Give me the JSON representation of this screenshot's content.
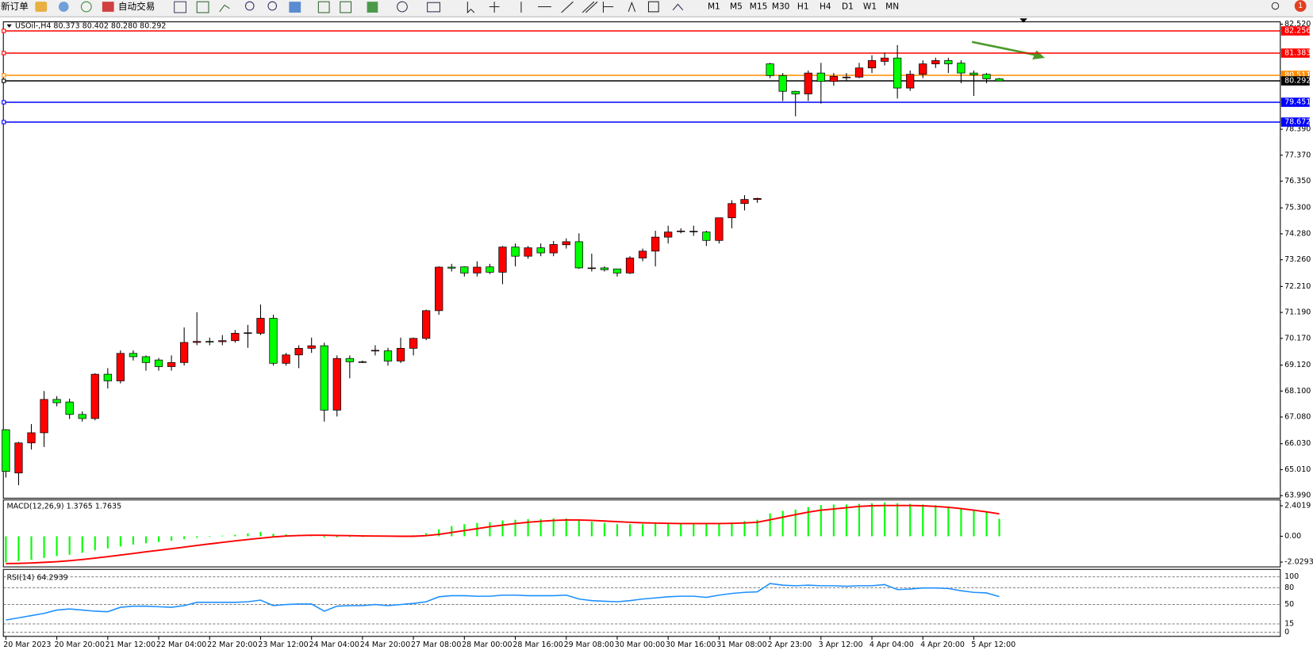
{
  "toolbar": {
    "new_order": "新订单",
    "auto_trading": "自动交易",
    "timeframes": [
      "M1",
      "M5",
      "M15",
      "M30",
      "H1",
      "H4",
      "D1",
      "W1",
      "MN"
    ],
    "badge": "1"
  },
  "chart_data": [
    {
      "type": "candlestick",
      "title": "USOil-,H4  80.373 80.402 80.280 80.292",
      "x": [
        "20 Mar 2023",
        null,
        null,
        null,
        "20 Mar 20:00",
        null,
        null,
        null,
        "21 Mar 12:00",
        null,
        null,
        null,
        "22 Mar 04:00",
        null,
        null,
        null,
        "22 Mar 20:00",
        null,
        null,
        null,
        "23 Mar 12:00",
        null,
        null,
        null,
        "24 Mar 04:00",
        null,
        null,
        null,
        "24 Mar 20:00",
        null,
        null,
        null,
        "27 Mar 08:00",
        null,
        null,
        null,
        "28 Mar 00:00",
        null,
        null,
        null,
        "28 Mar 16:00",
        null,
        null,
        null,
        "29 Mar 08:00",
        null,
        null,
        null,
        "30 Mar 00:00",
        null,
        null,
        null,
        "30 Mar 16:00",
        null,
        null,
        null,
        "31 Mar 08:00",
        null,
        null,
        null,
        "2 Apr 23:00",
        null,
        null,
        null,
        "3 Apr 12:00",
        null,
        null,
        null,
        "4 Apr 04:00",
        null,
        null,
        null,
        "4 Apr 20:00",
        null,
        null,
        null,
        "5 Apr 12:00",
        null,
        null
      ],
      "open": [
        66.58,
        64.88,
        66.06,
        66.46,
        67.77,
        67.67,
        67.18,
        67.02,
        68.76,
        68.5,
        69.58,
        69.45,
        69.32,
        69.06,
        69.22,
        70.01,
        70.05,
        70.04,
        70.08,
        70.37,
        70.37,
        70.96,
        69.19,
        69.52,
        69.78,
        69.88,
        67.35,
        69.38,
        69.25,
        69.7,
        69.68,
        69.28,
        69.78,
        70.17,
        71.26,
        72.97,
        72.98,
        72.74,
        72.98,
        72.77,
        73.76,
        73.4,
        73.73,
        73.53,
        73.85,
        73.97,
        72.94,
        72.94,
        72.9,
        72.74,
        73.33,
        73.6,
        74.15,
        74.37,
        74.37,
        74.35,
        74.02,
        74.91,
        75.47,
        75.63,
        80.96,
        80.5,
        79.88,
        79.78,
        80.6,
        80.27,
        80.44,
        80.44,
        80.8,
        81.06,
        81.19,
        80.01,
        80.55,
        80.96,
        81.09,
        80.99,
        80.6,
        80.55,
        80.373
      ],
      "high": [
        66.6,
        66.1,
        66.8,
        68.1,
        67.9,
        67.8,
        67.3,
        68.8,
        69.0,
        69.7,
        69.7,
        69.5,
        69.4,
        69.5,
        70.6,
        71.2,
        70.2,
        70.3,
        70.5,
        70.7,
        71.5,
        71.1,
        69.6,
        69.9,
        70.2,
        70.0,
        69.5,
        69.5,
        69.3,
        69.9,
        69.8,
        70.2,
        70.2,
        71.3,
        73.0,
        73.1,
        73.0,
        73.2,
        73.1,
        73.8,
        73.9,
        73.8,
        73.9,
        74.0,
        74.1,
        74.3,
        73.5,
        73.0,
        72.9,
        73.4,
        73.7,
        74.4,
        74.6,
        74.5,
        74.6,
        74.4,
        74.9,
        75.6,
        75.8,
        75.7,
        81.0,
        80.6,
        79.9,
        80.7,
        81.0,
        80.6,
        80.6,
        81.0,
        81.3,
        81.4,
        81.7,
        80.7,
        81.1,
        81.2,
        81.2,
        81.1,
        80.7,
        80.6,
        80.402
      ],
      "low": [
        64.7,
        64.4,
        65.8,
        65.9,
        67.5,
        67.0,
        66.9,
        66.95,
        68.2,
        68.4,
        69.3,
        68.9,
        68.9,
        68.9,
        69.1,
        69.9,
        69.9,
        69.9,
        70.0,
        69.8,
        70.3,
        69.1,
        69.1,
        69.0,
        69.6,
        66.9,
        67.1,
        68.6,
        69.2,
        69.5,
        69.1,
        69.2,
        69.5,
        70.1,
        71.1,
        72.8,
        72.6,
        72.6,
        72.7,
        72.3,
        73.0,
        73.3,
        73.4,
        73.4,
        73.7,
        72.9,
        72.8,
        72.8,
        72.6,
        72.7,
        73.2,
        73.0,
        73.9,
        74.3,
        74.2,
        73.8,
        73.9,
        74.5,
        75.2,
        75.5,
        80.4,
        79.5,
        78.9,
        79.5,
        79.4,
        80.1,
        80.3,
        80.4,
        80.6,
        80.9,
        79.6,
        79.9,
        80.4,
        80.8,
        80.6,
        80.2,
        79.7,
        80.2,
        80.28
      ],
      "close": [
        64.94,
        66.06,
        66.46,
        67.77,
        67.64,
        67.18,
        67.02,
        68.76,
        68.5,
        69.58,
        69.45,
        69.22,
        69.06,
        69.22,
        70.01,
        70.05,
        70.04,
        70.08,
        70.37,
        70.39,
        70.96,
        69.19,
        69.52,
        69.78,
        69.88,
        67.35,
        69.38,
        69.25,
        69.25,
        69.7,
        69.28,
        69.78,
        70.17,
        71.26,
        72.97,
        72.93,
        72.74,
        72.97,
        72.77,
        73.76,
        73.4,
        73.73,
        73.53,
        73.86,
        73.97,
        72.94,
        72.94,
        72.87,
        72.74,
        73.33,
        73.6,
        74.15,
        74.35,
        74.39,
        74.38,
        74.02,
        74.91,
        75.47,
        75.63,
        75.67,
        80.5,
        79.88,
        79.78,
        80.6,
        80.27,
        80.47,
        80.44,
        80.8,
        81.09,
        81.19,
        80.01,
        80.55,
        80.96,
        81.09,
        80.96,
        80.6,
        80.53,
        80.37,
        80.292
      ],
      "up_color": "#ff0000",
      "down_color": "#00ff00",
      "levels": [
        {
          "value": 82.256,
          "color": "#ff0000"
        },
        {
          "value": 81.383,
          "color": "#ff0000"
        },
        {
          "value": 80.511,
          "color": "#ff8c00"
        },
        {
          "value": 80.292,
          "color": "#000000"
        },
        {
          "value": 79.451,
          "color": "#0000ff"
        },
        {
          "value": 78.672,
          "color": "#0000ff"
        }
      ],
      "ylim": [
        63.92,
        82.58
      ],
      "yticks": [
        {
          "value": 82.52,
          "label": "82.520"
        },
        {
          "value": 78.39,
          "label": "78.390"
        },
        {
          "value": 77.37,
          "label": "77.370"
        },
        {
          "value": 76.35,
          "label": "76.350"
        },
        {
          "value": 75.3,
          "label": "75.300"
        },
        {
          "value": 74.28,
          "label": "74.280"
        },
        {
          "value": 73.26,
          "label": "73.260"
        },
        {
          "value": 72.21,
          "label": "72.210"
        },
        {
          "value": 71.19,
          "label": "71.190"
        },
        {
          "value": 70.17,
          "label": "70.170"
        },
        {
          "value": 69.12,
          "label": "69.120"
        },
        {
          "value": 68.1,
          "label": "68.100"
        },
        {
          "value": 67.08,
          "label": "67.080"
        },
        {
          "value": 66.03,
          "label": "66.030"
        },
        {
          "value": 65.01,
          "label": "65.010"
        },
        {
          "value": 63.99,
          "label": "63.990"
        }
      ]
    },
    {
      "type": "macd",
      "title": "MACD(12,26,9) 1.3765 1.7635",
      "histogram": [
        -2.05,
        -1.95,
        -1.85,
        -1.7,
        -1.55,
        -1.45,
        -1.3,
        -1.1,
        -0.95,
        -0.8,
        -0.65,
        -0.55,
        -0.45,
        -0.35,
        -0.22,
        -0.12,
        -0.05,
        0.05,
        0.12,
        0.22,
        0.35,
        0.2,
        0.15,
        0.12,
        0.1,
        -0.1,
        -0.08,
        -0.05,
        -0.05,
        -0.03,
        -0.02,
        0.02,
        0.08,
        0.25,
        0.55,
        0.8,
        0.95,
        1.05,
        1.1,
        1.25,
        1.3,
        1.35,
        1.35,
        1.4,
        1.4,
        1.25,
        1.15,
        1.05,
        0.95,
        0.95,
        0.95,
        1.0,
        1.05,
        1.05,
        1.05,
        1.0,
        1.05,
        1.1,
        1.2,
        1.3,
        1.8,
        2.0,
        2.1,
        2.3,
        2.45,
        2.5,
        2.5,
        2.55,
        2.6,
        2.65,
        2.6,
        2.55,
        2.5,
        2.45,
        2.35,
        2.2,
        2.05,
        1.9,
        1.3765
      ],
      "histogram_color": "#00ff00",
      "signal": [
        -2.15,
        -2.13,
        -2.1,
        -2.05,
        -2.0,
        -1.92,
        -1.83,
        -1.72,
        -1.6,
        -1.48,
        -1.35,
        -1.22,
        -1.1,
        -0.98,
        -0.85,
        -0.72,
        -0.6,
        -0.48,
        -0.36,
        -0.25,
        -0.15,
        -0.05,
        0.02,
        0.06,
        0.08,
        0.08,
        0.06,
        0.05,
        0.03,
        0.02,
        0.01,
        0.0,
        0.0,
        0.05,
        0.15,
        0.3,
        0.45,
        0.6,
        0.75,
        0.88,
        1.0,
        1.1,
        1.18,
        1.24,
        1.28,
        1.28,
        1.25,
        1.2,
        1.15,
        1.1,
        1.06,
        1.04,
        1.02,
        1.0,
        1.0,
        1.0,
        1.0,
        1.02,
        1.05,
        1.1,
        1.3,
        1.5,
        1.7,
        1.9,
        2.05,
        2.15,
        2.25,
        2.35,
        2.4,
        2.42,
        2.42,
        2.42,
        2.4,
        2.35,
        2.28,
        2.18,
        2.05,
        1.92,
        1.7635
      ],
      "signal_color": "#ff0000",
      "ylim": [
        -2.34,
        2.73
      ],
      "yticks": [
        2.4019,
        {
          "value": 0,
          "label": "0.00"
        },
        -2.0293
      ]
    },
    {
      "type": "line",
      "title": "RSI(14) 64.2939",
      "values": [
        22,
        26,
        30,
        34,
        40,
        42,
        40,
        38,
        37,
        45,
        47,
        47,
        46,
        45,
        48,
        54,
        54,
        54,
        54,
        55,
        58,
        48,
        50,
        51,
        51,
        38,
        47,
        48,
        48,
        50,
        48,
        50,
        52,
        55,
        64,
        66,
        66,
        65,
        65,
        67,
        67,
        66,
        66,
        66,
        67,
        60,
        57,
        56,
        55,
        57,
        60,
        62,
        64,
        65,
        65,
        63,
        67,
        70,
        72,
        73,
        88,
        85,
        84,
        85,
        84,
        84,
        83,
        84,
        84,
        86,
        77,
        78,
        80,
        80,
        79,
        75,
        72,
        71,
        64.2939
      ],
      "color": "#1e90ff",
      "ylim": [
        -4.5,
        109
      ],
      "yticks": [
        100,
        80,
        50,
        15,
        0
      ]
    }
  ]
}
